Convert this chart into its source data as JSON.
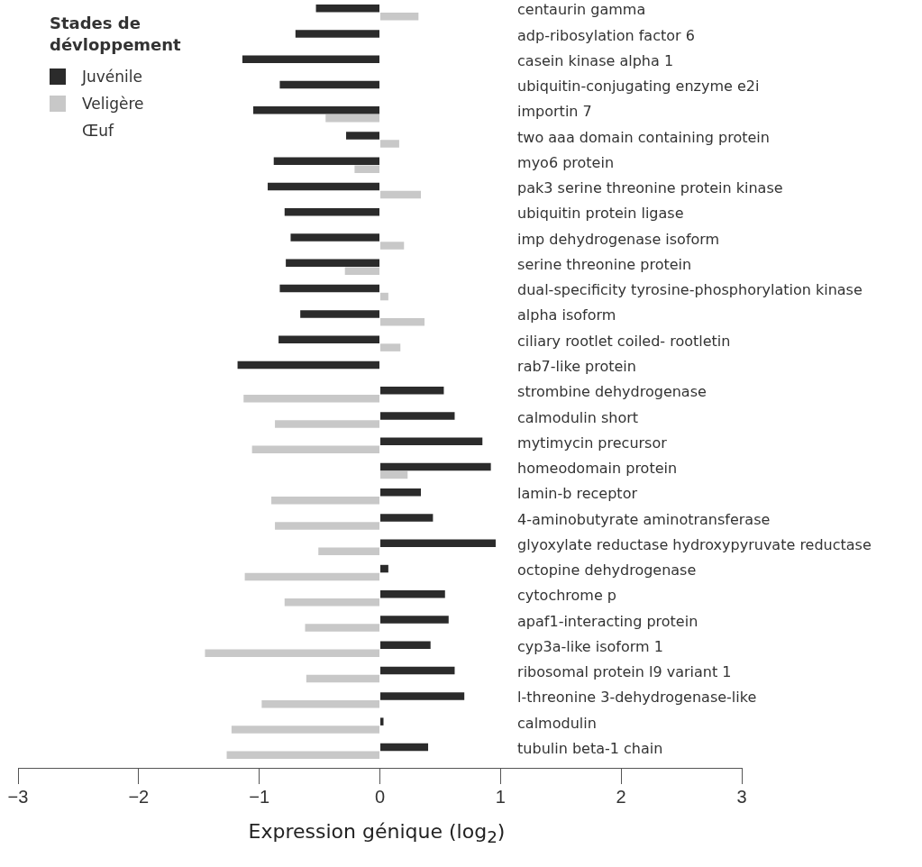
{
  "chart_data": {
    "type": "bar",
    "orientation": "horizontal",
    "xlabel": "Expression génique (log$_{2}$)",
    "legend_title": "Stades de dévloppement",
    "legend": "top left",
    "grid": false,
    "categories": [
      "centaurin gamma",
      "adp-ribosylation factor 6",
      "casein kinase alpha 1",
      "ubiquitin-conjugating enzyme e2i",
      "importin 7",
      "two aaa domain containing protein",
      "myo6 protein",
      "pak3 serine threonine protein kinase",
      "ubiquitin protein ligase",
      "imp dehydrogenase isoform",
      "serine threonine protein",
      "dual-specificity tyrosine-phosphorylation kinase",
      "alpha isoform",
      "ciliary rootlet coiled- rootletin",
      "rab7-like protein",
      "strombine dehydrogenase",
      "calmodulin short",
      "mytimycin precursor",
      "homeodomain protein",
      "lamin-b receptor",
      "4-aminobutyrate aminotransferase",
      "glyoxylate reductase hydroxypyruvate reductase",
      "octopine dehydrogenase",
      "cytochrome p",
      "apaf1-interacting protein",
      "cyp3a-like isoform 1",
      "ribosomal protein l9 variant 1",
      "l-threonine 3-dehydrogenase-like",
      "calmodulin",
      "tubulin beta-1 chain"
    ],
    "series": [
      {
        "name": "Juvénile",
        "color": "#2b2b2b",
        "values": [
          -0.53,
          -0.7,
          -1.14,
          -0.83,
          -1.05,
          -0.28,
          -0.88,
          -0.93,
          -0.79,
          -0.74,
          -0.78,
          -0.83,
          -0.66,
          -0.84,
          -1.18,
          0.53,
          0.62,
          0.85,
          0.92,
          0.34,
          0.44,
          0.96,
          0.07,
          0.54,
          0.57,
          0.42,
          0.62,
          0.7,
          0.03,
          0.4
        ]
      },
      {
        "name": "Veligère",
        "color": "#c8c8c8",
        "values": [
          0.32,
          null,
          null,
          null,
          -0.45,
          0.16,
          -0.21,
          0.34,
          null,
          0.2,
          -0.29,
          0.07,
          0.37,
          0.17,
          null,
          -1.13,
          -0.87,
          -1.06,
          0.23,
          -0.9,
          -0.87,
          -0.51,
          -1.12,
          -0.79,
          -0.62,
          -1.45,
          -0.61,
          -0.98,
          -1.23,
          -1.27
        ]
      },
      {
        "name": "Œuf",
        "values": [
          null,
          null,
          null,
          null,
          null,
          null,
          null,
          null,
          null,
          null,
          null,
          null,
          null,
          null,
          null,
          null,
          null,
          null,
          null,
          null,
          null,
          null,
          null,
          null,
          null,
          null,
          null,
          null,
          null,
          null
        ]
      }
    ],
    "xlim": [
      -3,
      3
    ],
    "xticks": [
      -3,
      -2,
      -1,
      0,
      1,
      2,
      3
    ]
  }
}
